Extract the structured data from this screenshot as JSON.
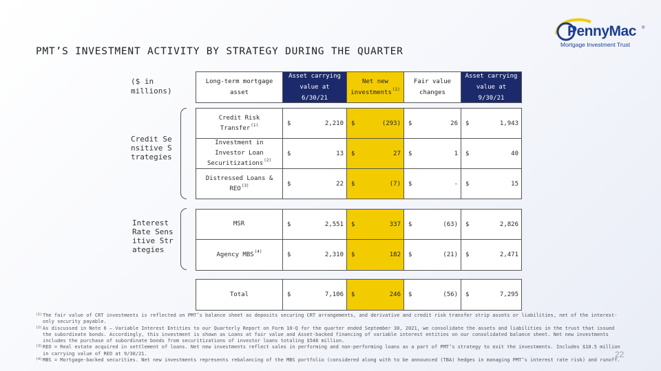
{
  "title": "PMT’S INVESTMENT ACTIVITY BY STRATEGY DURING THE QUARTER",
  "logo": {
    "name": "PennyMac",
    "reg": "®",
    "tagline": "Mortgage Investment Trust"
  },
  "units": "($ in millions)",
  "groups": {
    "credit": "Credit Sensitive Strategies",
    "interest": "Interest Rate Sensitive Strategies"
  },
  "header": {
    "col0": "Long-term mortgage asset",
    "col1": "Asset carrying value at 6/30/21",
    "col2": "Net new investments",
    "col2_sup": "(1)",
    "col3": "Fair value changes",
    "col4": "Asset carrying value at 9/30/21"
  },
  "currency": "$",
  "credit_rows": [
    {
      "label": "Credit Risk Transfer",
      "sup": "(1)",
      "v1": "2,210",
      "v2": "(293)",
      "v3": "26",
      "v4": "1,943"
    },
    {
      "label": "Investment in Investor Loan Securitizations",
      "sup": "(2)",
      "v1": "13",
      "v2": "27",
      "v3": "1",
      "v4": "40"
    },
    {
      "label": "Distressed Loans & REO",
      "sup": "(3)",
      "v1": "22",
      "v2": "(7)",
      "v3": "-",
      "v4": "15"
    }
  ],
  "interest_rows": [
    {
      "label": "MSR",
      "sup": "",
      "v1": "2,551",
      "v2": "337",
      "v3": "(63)",
      "v4": "2,826"
    },
    {
      "label": "Agency MBS",
      "sup": "(4)",
      "v1": "2,310",
      "v2": "182",
      "v3": "(21)",
      "v4": "2,471"
    }
  ],
  "total_row": {
    "label": "Total",
    "v1": "7,106",
    "v2": "246",
    "v3": "(56)",
    "v4": "7,295"
  },
  "footnotes": [
    {
      "mark": "(1)",
      "text": "The fair value of CRT investments is reflected on PMT’s balance sheet as deposits securing CRT arrangements, and derivative and credit risk transfer strip assets or liabilities, net of the interest-only security payable."
    },
    {
      "mark": "(2)",
      "text": "As discussed in Note 6 – Variable Interest Entities to our Quarterly Report on Form 10-Q for the quarter ended September 30, 2021, we consolidate the assets and liabilities in the trust that issued the subordinate bonds. Accordingly, this investment is shown as Loans at fair value and Asset-backed financing of variable interest entities on our consolidated balance sheet. Net new investments includes the purchase of subordinate bonds from securitizations of investor loans totaling $548 million."
    },
    {
      "mark": "(3)",
      "text": "REO = Real estate acquired in settlement of loans.  Net new investments reflect sales in performing and non-performing loans as a part of PMT’s strategy to exit the investments.  Includes $10.5 million in carrying value of REO at 9/30/21."
    },
    {
      "mark": "(4)",
      "text": "MBS = Mortgage-backed securities. Net new investments represents rebalancing of the MBS portfolio (considered along with to be announced (TBA) hedges in managing PMT’s interest rate risk) and runoff."
    }
  ],
  "page_number": "22"
}
